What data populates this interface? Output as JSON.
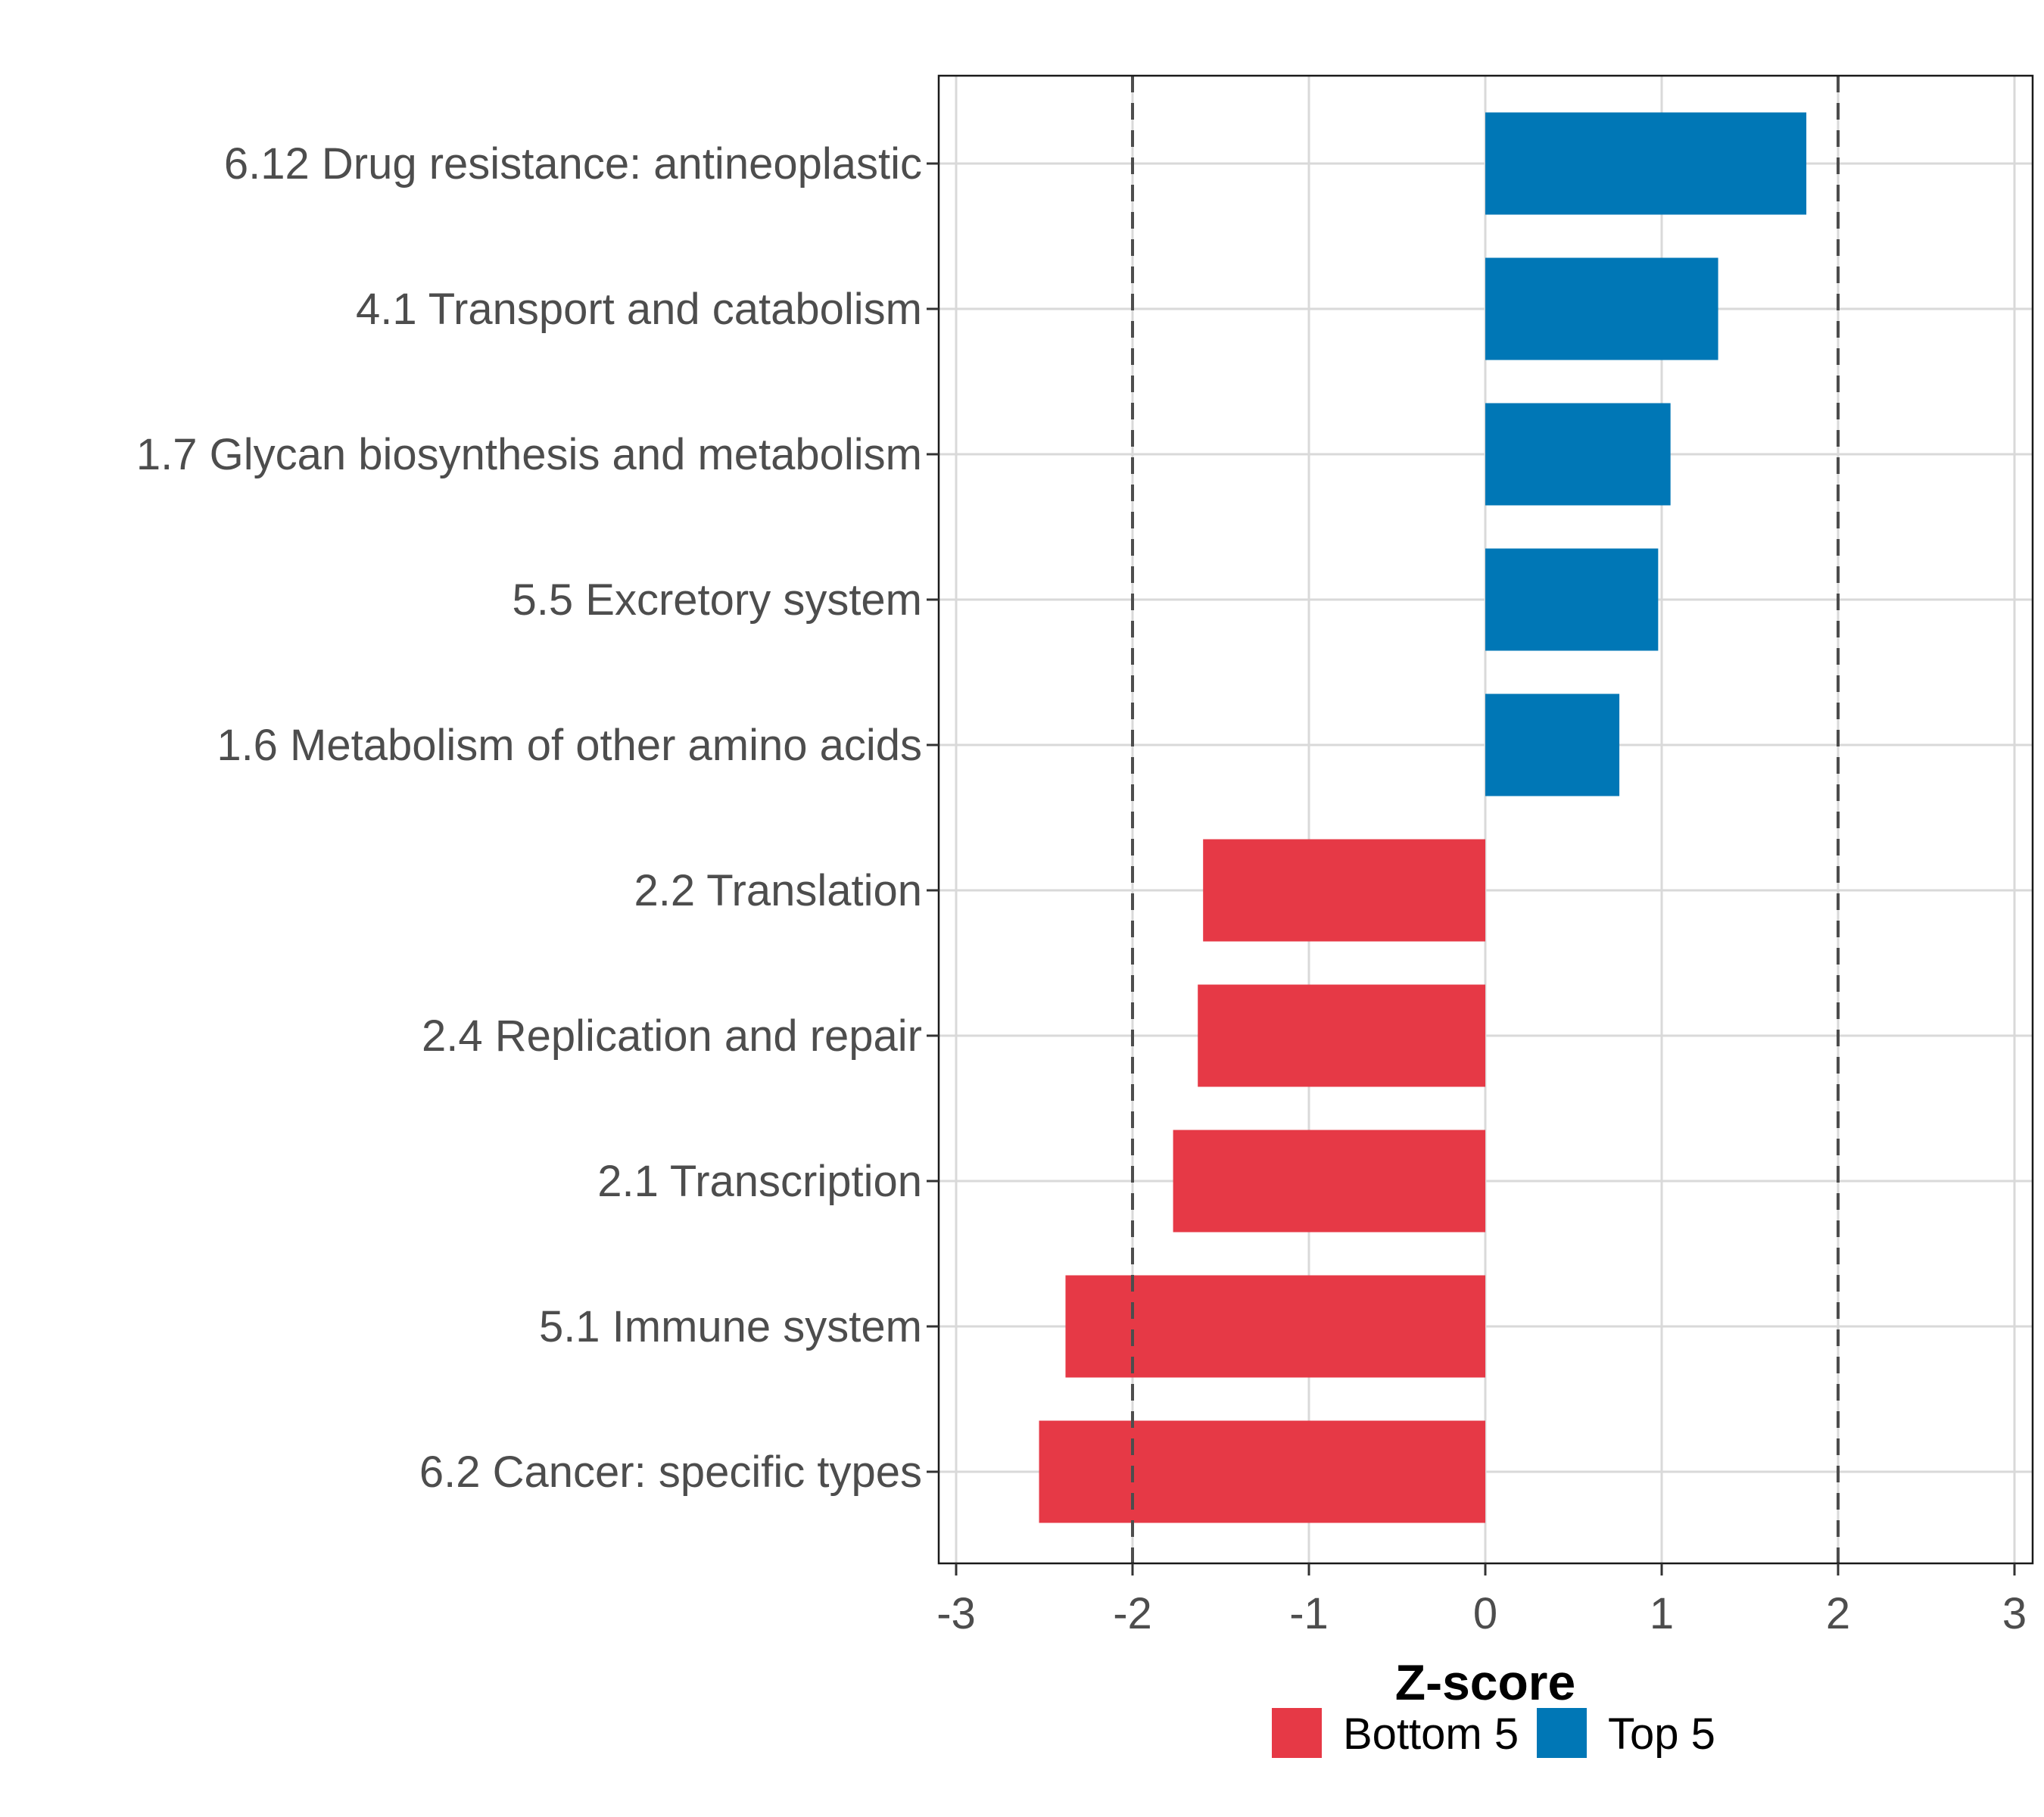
{
  "chart_data": {
    "type": "bar",
    "orientation": "horizontal",
    "title": "",
    "xlabel": "Z-score",
    "ylabel": "",
    "xlim": [
      -3.1,
      3.1
    ],
    "xticks": [
      -3,
      -2,
      -1,
      0,
      1,
      2,
      3
    ],
    "xtick_labels": [
      "-3",
      "-2",
      "-1",
      "0",
      "1",
      "2",
      "3"
    ],
    "reference_lines": [
      -2,
      2
    ],
    "grid": true,
    "categories": [
      "6.12 Drug resistance: antineoplastic",
      "4.1 Transport and catabolism",
      "1.7 Glycan biosynthesis and metabolism",
      "5.5 Excretory system",
      "1.6 Metabolism of other amino acids",
      "2.2 Translation",
      "2.4 Replication and repair",
      "2.1 Transcription",
      "5.1 Immune system",
      "6.2 Cancer: specific types"
    ],
    "values": [
      1.82,
      1.32,
      1.05,
      0.98,
      0.76,
      -1.6,
      -1.63,
      -1.77,
      -2.38,
      -2.53
    ],
    "groups": [
      "Top 5",
      "Top 5",
      "Top 5",
      "Top 5",
      "Top 5",
      "Bottom 5",
      "Bottom 5",
      "Bottom 5",
      "Bottom 5",
      "Bottom 5"
    ],
    "legend": {
      "placement": "bottom",
      "entries": [
        {
          "label": "Bottom 5",
          "color": "#E63946"
        },
        {
          "label": "Top 5",
          "color": "#0077B6"
        }
      ]
    },
    "colors": {
      "Top 5": "#0077B6",
      "Bottom 5": "#E63946",
      "grid": "#D9D9D9",
      "reference_line": "#4D4D4D",
      "axis_text": "#4D4D4D"
    }
  }
}
